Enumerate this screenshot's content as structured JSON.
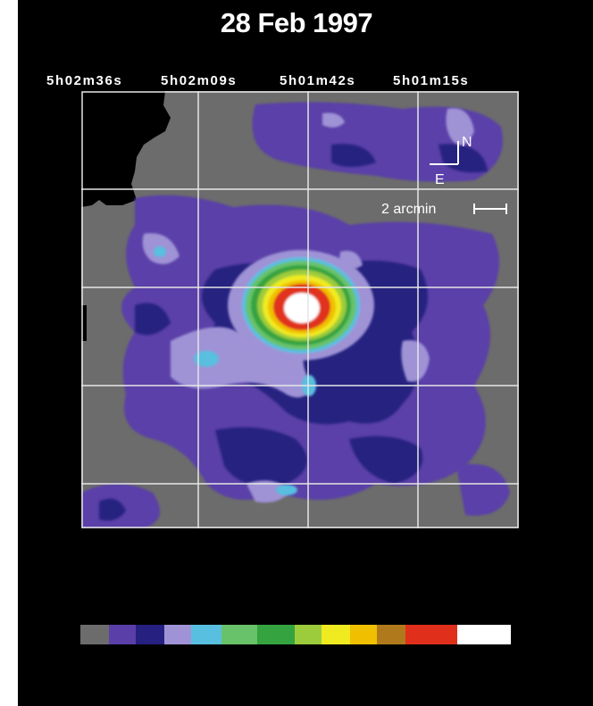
{
  "title": "28 Feb 1997",
  "ra_labels": [
    "5h02m36s",
    "5h02m09s",
    "5h01m42s",
    "5h01m15s"
  ],
  "orientation": {
    "north": "N",
    "east": "E"
  },
  "scale_bar": {
    "label": "2 arcmin"
  },
  "colors": {
    "background": "#000000",
    "map_base": "#6c6c6c",
    "grid": "#e6e6e6",
    "levels": [
      "#6c6c6c",
      "#5a3fa8",
      "#262080",
      "#9f93d6",
      "#59bfe0",
      "#68c26a",
      "#35a33f",
      "#9ccc3c",
      "#f0ea20",
      "#f0c000",
      "#b07a1c",
      "#e0301c",
      "#ffffff"
    ]
  },
  "colorbar_levels": [
    "#6c6c6c",
    "#5a3fa8",
    "#262080",
    "#9f93d6",
    "#59bfe0",
    "#68c26a",
    "#35a33f",
    "#9ccc3c",
    "#f0ea20",
    "#f0c000",
    "#b07a1c",
    "#e0301c",
    "#ffffff"
  ]
}
